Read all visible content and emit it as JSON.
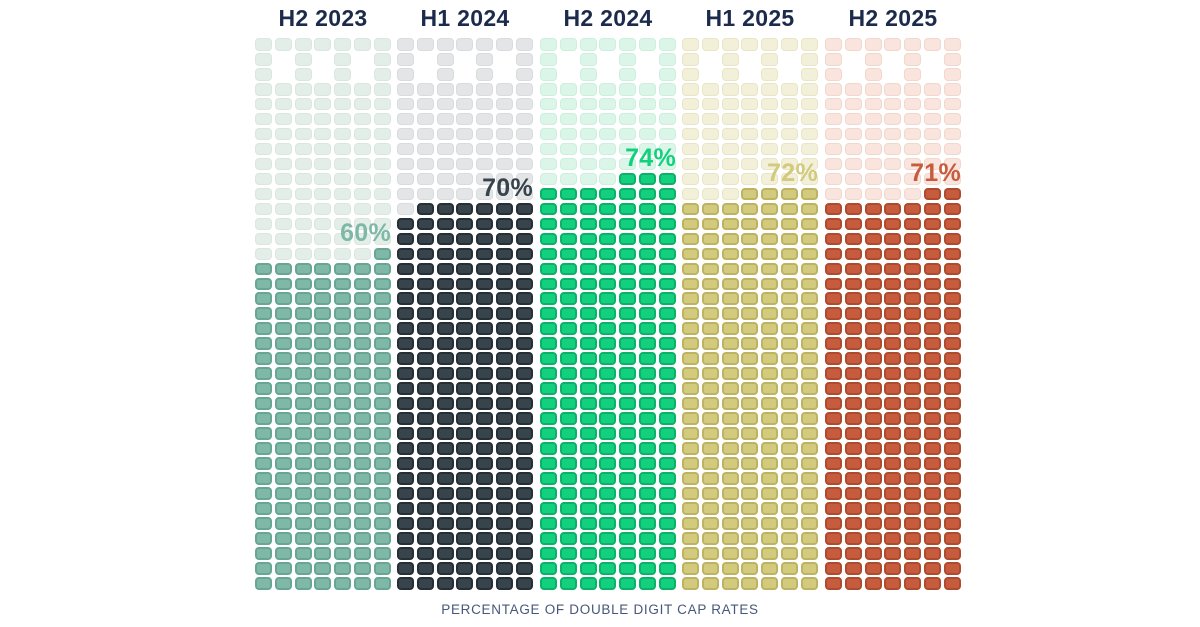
{
  "chart_data": {
    "type": "waffle-bar",
    "title": "",
    "caption": "PERCENTAGE OF DOUBLE DIGIT CAP RATES",
    "categories": [
      "H2 2023",
      "H1 2024",
      "H2 2024",
      "H1 2025",
      "H2 2025"
    ],
    "values": [
      60,
      70,
      74,
      72,
      71
    ],
    "unit": "%",
    "ylim": [
      0,
      100
    ],
    "legend": "none",
    "grid_shape": {
      "squares_per_row": 7,
      "rows": 37,
      "notch_rows": [
        2,
        3
      ],
      "notch_missing_columns": [
        2,
        4,
        6
      ],
      "partial_row_alignment": "right"
    },
    "columns": [
      {
        "label": "H2 2023",
        "value": 60,
        "value_label": "60%",
        "fill_color": "#7FB8A7",
        "fill_border": "#68A694",
        "light_color": "#E4EEE9",
        "light_border": "#DAE7E0"
      },
      {
        "label": "H1 2024",
        "value": 70,
        "value_label": "70%",
        "fill_color": "#38444C",
        "fill_border": "#262F36",
        "light_color": "#E3E5E7",
        "light_border": "#D9DCDE"
      },
      {
        "label": "H2 2024",
        "value": 74,
        "value_label": "74%",
        "fill_color": "#12D07E",
        "fill_border": "#0BB168",
        "light_color": "#DBF6E8",
        "light_border": "#CCF0DD"
      },
      {
        "label": "H1 2025",
        "value": 72,
        "value_label": "72%",
        "fill_color": "#D2CA7D",
        "fill_border": "#BDB363",
        "light_color": "#F3F0D9",
        "light_border": "#EAE5C6"
      },
      {
        "label": "H2 2025",
        "value": 71,
        "value_label": "71%",
        "fill_color": "#C65C3D",
        "fill_border": "#AE4A2E",
        "light_color": "#F9E5DE",
        "light_border": "#F2D7CC"
      }
    ],
    "title_color": "#1C2B4B",
    "caption_color": "#46587A",
    "background_color": "#FFFFFF"
  }
}
